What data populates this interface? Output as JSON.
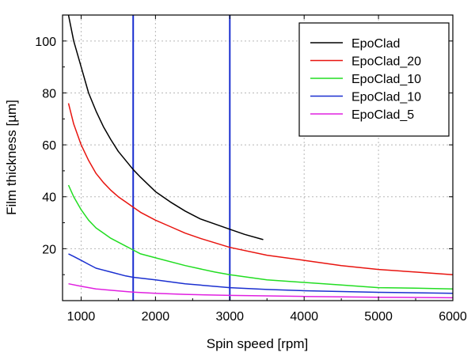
{
  "chart_data": {
    "type": "line",
    "title": "",
    "xlabel": "Spin speed [rpm]",
    "ylabel": "Film thickness [µm]",
    "xlim": [
      750,
      6000
    ],
    "ylim": [
      0,
      110
    ],
    "xticks": [
      1000,
      2000,
      3000,
      4000,
      5000,
      6000
    ],
    "yticks": [
      20,
      40,
      60,
      80,
      100
    ],
    "grid": true,
    "legend_position": "top-right",
    "vertical_markers": [
      {
        "x": 1700,
        "color": "#1a2fd0"
      },
      {
        "x": 3000,
        "color": "#1a2fd0"
      }
    ],
    "series": [
      {
        "name": "EpoClad",
        "color": "#000000",
        "x": [
          830,
          900,
          1000,
          1100,
          1200,
          1300,
          1400,
          1500,
          1600,
          1700,
          1800,
          2000,
          2200,
          2400,
          2600,
          2800,
          3000,
          3200,
          3450
        ],
        "y": [
          111,
          100,
          90,
          80,
          73,
          67,
          62,
          57.5,
          54,
          50.5,
          47.5,
          42,
          38,
          34.5,
          31.5,
          29.5,
          27.5,
          25.5,
          23.5
        ]
      },
      {
        "name": "EpoClad_20",
        "color": "#e8140f",
        "x": [
          830,
          900,
          1000,
          1100,
          1200,
          1300,
          1400,
          1500,
          1600,
          1700,
          1800,
          2000,
          2200,
          2400,
          2600,
          3000,
          3500,
          4000,
          4500,
          5000,
          5500,
          6000
        ],
        "y": [
          76,
          68,
          60,
          54,
          49,
          45.5,
          42.5,
          40,
          38,
          36,
          34,
          31,
          28.5,
          26,
          24,
          20.5,
          17.5,
          15.5,
          13.5,
          12,
          11,
          10
        ]
      },
      {
        "name": "EpoClad_10",
        "color": "#22dd22",
        "x": [
          830,
          900,
          1000,
          1100,
          1200,
          1400,
          1600,
          1700,
          1800,
          2000,
          2400,
          2800,
          3000,
          3500,
          4000,
          4500,
          5000,
          5500,
          6000
        ],
        "y": [
          44.5,
          40,
          35,
          31,
          28,
          24,
          21,
          19.5,
          18,
          16.5,
          13.5,
          11,
          10,
          8,
          7,
          6,
          5,
          4.8,
          4.5
        ]
      },
      {
        "name": "EpoClad_10",
        "color": "#1a2fd0",
        "x": [
          830,
          900,
          1000,
          1100,
          1200,
          1400,
          1600,
          1700,
          2000,
          2400,
          3000,
          3500,
          4000,
          5000,
          6000
        ],
        "y": [
          18,
          17,
          15.5,
          14,
          12.5,
          11,
          9.5,
          9,
          8,
          6.5,
          5,
          4.3,
          3.8,
          3.2,
          2.8
        ]
      },
      {
        "name": "EpoClad_5",
        "color": "#e020e0",
        "x": [
          830,
          1000,
          1200,
          1400,
          1600,
          1700,
          2000,
          2400,
          3000,
          4000,
          5000,
          6000
        ],
        "y": [
          6.5,
          5.5,
          4.5,
          4,
          3.5,
          3.3,
          2.8,
          2.4,
          2,
          1.6,
          1.3,
          1.1
        ]
      }
    ]
  }
}
